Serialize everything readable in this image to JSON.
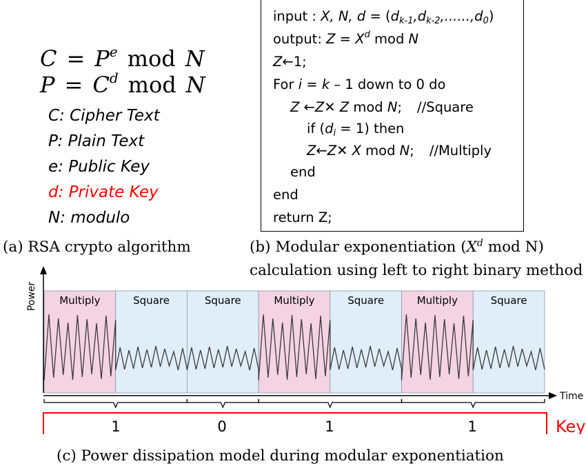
{
  "rsa": {
    "eq1": {
      "lhs": "C",
      "eq": "=",
      "base": "P",
      "exp": "e",
      "op": "mod",
      "mod": "N"
    },
    "eq2": {
      "lhs": "P",
      "eq": "=",
      "base": "C",
      "exp": "d",
      "op": "mod",
      "mod": "N"
    },
    "legend": [
      {
        "text": "C: Cipher Text",
        "color": "#000000"
      },
      {
        "text": "P: Plain Text",
        "color": "#000000"
      },
      {
        "text": "e: Public Key",
        "color": "#000000"
      },
      {
        "text": "d: Private Key",
        "color": "#ff0000"
      },
      {
        "text": "N: modulo",
        "color": "#000000"
      }
    ]
  },
  "code": {
    "l1_a": "input : ",
    "l1_b": "X, N, d",
    "l1_c": " = (",
    "l1_d1": "d",
    "l1_s1": "k-1",
    "l1_d2": ",d",
    "l1_s2": "k-2",
    "l1_d3": ",......,d",
    "l1_s3": "0",
    "l1_e": ")",
    "l2_a": "output: ",
    "l2_b": "Z",
    "l2_c": " = ",
    "l2_d": "X",
    "l2_e": "d",
    "l2_f": " mod ",
    "l2_g": "N",
    "l3_a": "Z",
    "l3_b": "←1;",
    "l4_a": "For ",
    "l4_b": "i",
    "l4_c": " = ",
    "l4_d": "k",
    "l4_e": " – 1 down to 0 do",
    "l5_a": "Z",
    "l5_b": " ←",
    "l5_c": "Z",
    "l5_d": "✕ ",
    "l5_e": "Z",
    "l5_f": " mod ",
    "l5_g": "N",
    "l5_h": ";",
    "l5_cm": "//Square",
    "l6_a": "if (",
    "l6_b": "d",
    "l6_c": "i",
    "l6_d": " = 1) then",
    "l7_a": "Z",
    "l7_b": "←",
    "l7_c": "Z",
    "l7_d": "✕ ",
    "l7_e": "X",
    "l7_f": " mod ",
    "l7_g": "N",
    "l7_h": ";",
    "l7_cm": "//Multiply",
    "l8": "end",
    "l9": "end",
    "l10": "return Z;"
  },
  "captions": {
    "a": "(a) RSA crypto algorithm",
    "b1_a": "(b) Modular exponentiation (",
    "b1_b": "X",
    "b1_c": "d",
    "b1_d": " mod N)",
    "b2": "calculation using left to right binary method",
    "c": "(c) Power dissipation model during modular exponentiation"
  },
  "power": {
    "y_axis_label": "Power",
    "x_axis_label": "Time",
    "segments": [
      {
        "label": "Multiply",
        "type": "multiply"
      },
      {
        "label": "Square",
        "type": "square"
      },
      {
        "label": "Square",
        "type": "square"
      },
      {
        "label": "Multiply",
        "type": "multiply"
      },
      {
        "label": "Square",
        "type": "square"
      },
      {
        "label": "Multiply",
        "type": "multiply"
      },
      {
        "label": "Square",
        "type": "square"
      }
    ],
    "multiply_color": "#f4d3e3",
    "square_color": "#dfeef8",
    "key_label": "Key",
    "key_color": "#ff0000",
    "key_bits": [
      "1",
      "0",
      "1",
      "1"
    ]
  }
}
